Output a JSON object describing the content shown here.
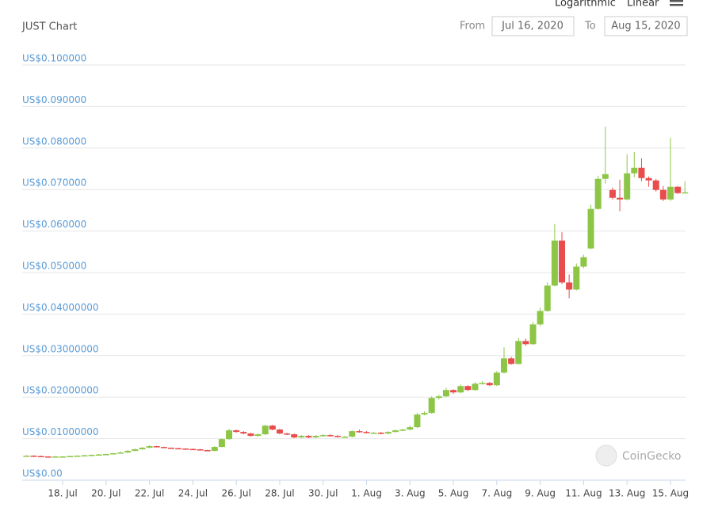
{
  "chart_data": {
    "type": "candlestick",
    "title": "JUST Chart",
    "controls": {
      "scale_options": [
        "Logarithmic",
        "Linear"
      ],
      "from_label": "From",
      "from_date": "Jul 16, 2020",
      "to_label": "To",
      "to_date": "Aug 15, 2020"
    },
    "watermark": "CoinGecko",
    "up_color": "#8dc647",
    "down_color": "#e84c4c",
    "grid": true,
    "ylim": [
      0,
      0.1
    ],
    "yticks": [
      {
        "value": 0,
        "label": "US$0.00"
      },
      {
        "value": 0.01,
        "label": "US$0.01000000"
      },
      {
        "value": 0.02,
        "label": "US$0.02000000"
      },
      {
        "value": 0.03,
        "label": "US$0.03000000"
      },
      {
        "value": 0.04,
        "label": "US$0.04000000"
      },
      {
        "value": 0.05,
        "label": "US$0.050000"
      },
      {
        "value": 0.06,
        "label": "US$0.060000"
      },
      {
        "value": 0.07,
        "label": "US$0.070000"
      },
      {
        "value": 0.08,
        "label": "US$0.080000"
      },
      {
        "value": 0.09,
        "label": "US$0.090000"
      },
      {
        "value": 0.1,
        "label": "US$0.100000"
      }
    ],
    "categories": [
      null,
      null,
      null,
      null,
      null,
      "18. Jul",
      null,
      null,
      null,
      null,
      null,
      "20. Jul",
      null,
      null,
      null,
      null,
      null,
      "22. Jul",
      null,
      null,
      null,
      null,
      null,
      "24. Jul",
      null,
      null,
      null,
      null,
      null,
      "26. Jul",
      null,
      null,
      null,
      null,
      null,
      "28. Jul",
      null,
      null,
      null,
      null,
      null,
      "30. Jul",
      null,
      null,
      null,
      null,
      null,
      "1. Aug",
      null,
      null,
      null,
      null,
      null,
      "3. Aug",
      null,
      null,
      null,
      null,
      null,
      "5. Aug",
      null,
      null,
      null,
      null,
      null,
      "7. Aug",
      null,
      null,
      null,
      null,
      null,
      "9. Aug",
      null,
      null,
      null,
      null,
      null,
      "11. Aug",
      null,
      null,
      null,
      null,
      null,
      "13. Aug",
      null,
      null,
      null,
      null,
      null,
      "15. Aug",
      null,
      null
    ],
    "open": [
      0.00581,
      0.0059,
      0.00581,
      0.00571,
      0.00566,
      0.00571,
      0.00571,
      0.00581,
      0.0059,
      0.006,
      0.0061,
      0.00619,
      0.00629,
      0.00648,
      0.00667,
      0.00705,
      0.00743,
      0.00781,
      0.00819,
      0.008,
      0.00781,
      0.00771,
      0.00762,
      0.00752,
      0.00743,
      0.00724,
      0.00705,
      0.008,
      0.0099,
      0.012,
      0.01162,
      0.01124,
      0.01067,
      0.01105,
      0.01314,
      0.01219,
      0.01124,
      0.01105,
      0.01029,
      0.01067,
      0.01029,
      0.01067,
      0.01086,
      0.01067,
      0.01048,
      0.01048,
      0.01181,
      0.01162,
      0.01143,
      0.01143,
      0.01124,
      0.01162,
      0.012,
      0.01219,
      0.01276,
      0.01581,
      0.01619,
      0.01981,
      0.02019,
      0.02171,
      0.02114,
      0.02267,
      0.02171,
      0.02324,
      0.02343,
      0.02286,
      0.0259,
      0.02933,
      0.028,
      0.03352,
      0.03276,
      0.03752,
      0.04076,
      0.04686,
      0.05771,
      0.04762,
      0.0459,
      0.05143,
      0.05581,
      0.06533,
      0.07257,
      0.0699,
      0.068,
      0.06762,
      0.0739,
      0.07524,
      0.07276,
      0.07219,
      0.0699,
      0.06762,
      0.07067,
      0.06914
    ],
    "high": [
      0.006,
      0.006,
      0.0059,
      0.00581,
      0.00581,
      0.00581,
      0.0059,
      0.006,
      0.0061,
      0.00619,
      0.00629,
      0.00638,
      0.00657,
      0.00686,
      0.00724,
      0.00762,
      0.008,
      0.00838,
      0.00829,
      0.0081,
      0.0079,
      0.00781,
      0.00771,
      0.00762,
      0.00752,
      0.00733,
      0.00819,
      0.0101,
      0.01238,
      0.01219,
      0.01181,
      0.01143,
      0.01124,
      0.01333,
      0.01333,
      0.01238,
      0.01143,
      0.01124,
      0.01086,
      0.01086,
      0.01086,
      0.01105,
      0.01105,
      0.01086,
      0.01067,
      0.012,
      0.01219,
      0.01181,
      0.01162,
      0.01162,
      0.01181,
      0.01219,
      0.01238,
      0.01314,
      0.01619,
      0.01657,
      0.02019,
      0.02057,
      0.02229,
      0.0219,
      0.02305,
      0.02286,
      0.02362,
      0.02381,
      0.02362,
      0.02629,
      0.032,
      0.02971,
      0.03429,
      0.0341,
      0.0381,
      0.04152,
      0.04762,
      0.06171,
      0.05971,
      0.04952,
      0.05219,
      0.05429,
      0.06629,
      0.07333,
      0.08514,
      0.07048,
      0.07238,
      0.07848,
      0.07905,
      0.07752,
      0.07314,
      0.07257,
      0.07086,
      0.08248,
      0.07086,
      0.072
    ],
    "low": [
      0.00571,
      0.00571,
      0.00562,
      0.00557,
      0.00557,
      0.00562,
      0.00562,
      0.00571,
      0.00581,
      0.0059,
      0.006,
      0.0061,
      0.00619,
      0.00638,
      0.00657,
      0.00695,
      0.00733,
      0.00771,
      0.0079,
      0.00771,
      0.00762,
      0.00752,
      0.00743,
      0.00733,
      0.00714,
      0.00695,
      0.00695,
      0.0079,
      0.00971,
      0.01143,
      0.01105,
      0.01048,
      0.01048,
      0.01086,
      0.012,
      0.01105,
      0.01086,
      0.0101,
      0.0101,
      0.0101,
      0.0101,
      0.01048,
      0.01048,
      0.01029,
      0.01029,
      0.01029,
      0.01143,
      0.01124,
      0.01124,
      0.01105,
      0.01105,
      0.01143,
      0.01181,
      0.012,
      0.01257,
      0.01562,
      0.016,
      0.01943,
      0.02,
      0.02076,
      0.02095,
      0.02152,
      0.02152,
      0.02305,
      0.02267,
      0.02267,
      0.02571,
      0.02781,
      0.02781,
      0.03238,
      0.03257,
      0.03714,
      0.04057,
      0.04667,
      0.04724,
      0.04381,
      0.04571,
      0.05105,
      0.05562,
      0.06514,
      0.07143,
      0.06762,
      0.06476,
      0.06743,
      0.07295,
      0.072,
      0.07067,
      0.06952,
      0.06724,
      0.06724,
      0.06895,
      0.06914
    ],
    "close": [
      0.0059,
      0.00581,
      0.00571,
      0.00566,
      0.00571,
      0.00571,
      0.00581,
      0.0059,
      0.006,
      0.0061,
      0.00619,
      0.00629,
      0.00648,
      0.00667,
      0.00705,
      0.00743,
      0.00781,
      0.00819,
      0.008,
      0.00781,
      0.00771,
      0.00762,
      0.00752,
      0.00743,
      0.00724,
      0.00705,
      0.008,
      0.0099,
      0.012,
      0.01162,
      0.01124,
      0.01067,
      0.01105,
      0.01314,
      0.01219,
      0.01124,
      0.01105,
      0.01029,
      0.01067,
      0.01029,
      0.01067,
      0.01086,
      0.01067,
      0.01048,
      0.01048,
      0.01181,
      0.01162,
      0.01143,
      0.01143,
      0.01124,
      0.01162,
      0.012,
      0.01219,
      0.01276,
      0.01581,
      0.01619,
      0.01981,
      0.02019,
      0.02171,
      0.02114,
      0.02267,
      0.02171,
      0.02324,
      0.02343,
      0.02286,
      0.0259,
      0.02933,
      0.028,
      0.03352,
      0.03276,
      0.03752,
      0.04076,
      0.04686,
      0.05771,
      0.04762,
      0.0459,
      0.05143,
      0.05371,
      0.06533,
      0.07257,
      0.07371,
      0.068,
      0.06762,
      0.0739,
      0.07524,
      0.07276,
      0.07219,
      0.0699,
      0.06762,
      0.07067,
      0.06914,
      0.06933
    ]
  }
}
